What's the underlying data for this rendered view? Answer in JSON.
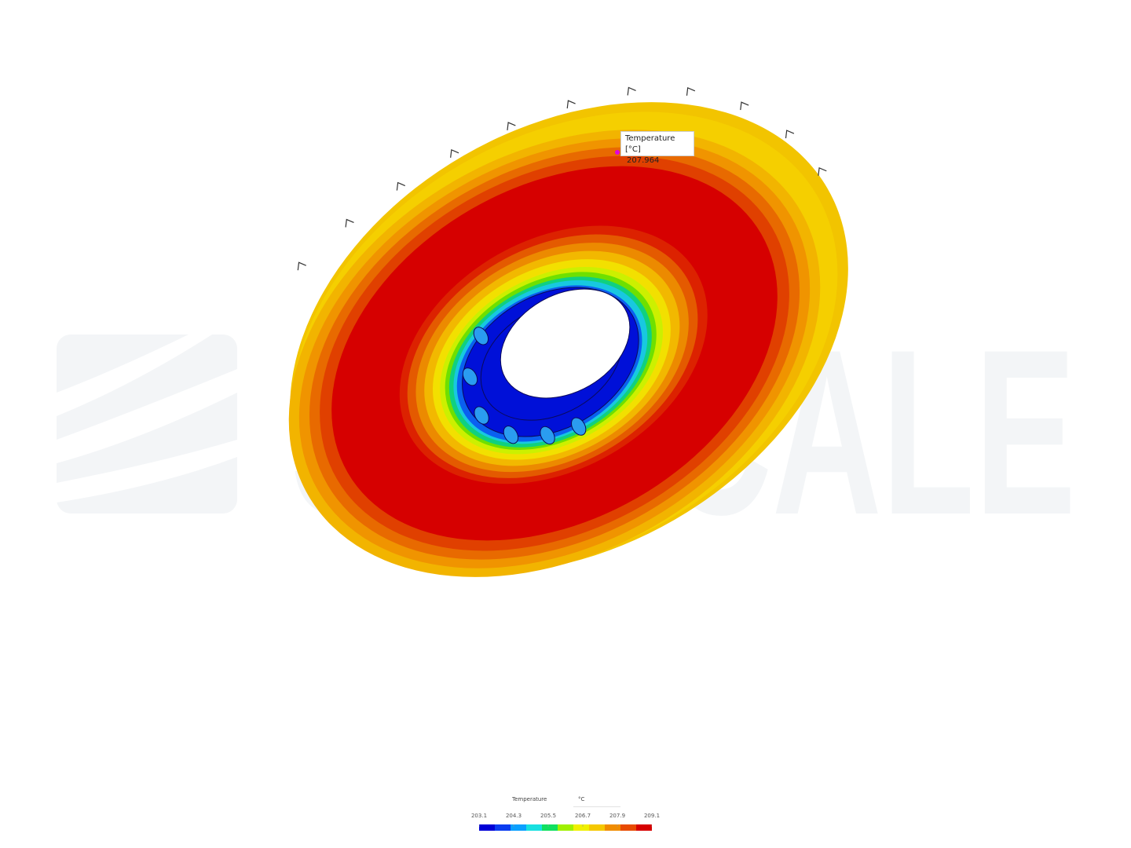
{
  "watermark": {
    "text": "SIMSCALE"
  },
  "probe": {
    "label": "Temperature [°C]",
    "value": "207.964"
  },
  "legend": {
    "title": "Temperature",
    "unit": "°C",
    "ticks": [
      "203.1",
      "204.3",
      "205.5",
      "206.7",
      "207.9",
      "209.1"
    ],
    "colors": [
      "#0000d6",
      "#0a3cf0",
      "#0aa0ff",
      "#18e0e0",
      "#10e060",
      "#a0f000",
      "#f0f000",
      "#f5c800",
      "#f08c00",
      "#e84a00",
      "#d60000"
    ]
  }
}
